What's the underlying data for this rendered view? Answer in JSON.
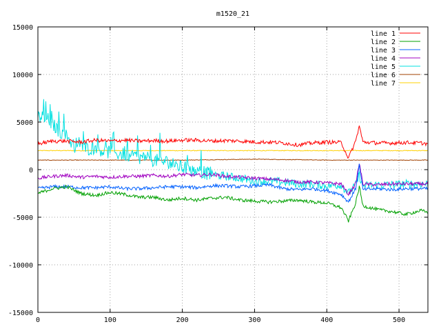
{
  "chart_data": {
    "type": "line",
    "title": "m1520_21",
    "xlabel": "",
    "ylabel": "",
    "xlim": [
      0,
      540
    ],
    "ylim": [
      -15000,
      15000
    ],
    "xticks": [
      0,
      100,
      200,
      300,
      400,
      500
    ],
    "yticks": [
      -15000,
      -10000,
      -5000,
      0,
      5000,
      10000,
      15000
    ],
    "grid": true,
    "legend_position": "top-right",
    "series": [
      {
        "name": "line 1",
        "color": "#ff0000",
        "x": [
          0,
          20,
          40,
          60,
          80,
          100,
          120,
          140,
          160,
          180,
          200,
          220,
          240,
          260,
          280,
          300,
          320,
          340,
          360,
          380,
          400,
          420,
          430,
          440,
          445,
          450,
          470,
          490,
          510,
          530,
          540
        ],
        "y": [
          2700,
          3000,
          3000,
          2900,
          3100,
          3000,
          3100,
          3000,
          3050,
          3000,
          3100,
          3100,
          3000,
          3050,
          3000,
          2900,
          2900,
          2800,
          2600,
          2800,
          2900,
          2850,
          1200,
          3000,
          4600,
          2900,
          2800,
          2800,
          2850,
          2800,
          2700
        ]
      },
      {
        "name": "line 2",
        "color": "#00a000",
        "x": [
          0,
          20,
          40,
          60,
          80,
          100,
          120,
          140,
          160,
          180,
          200,
          220,
          240,
          260,
          280,
          300,
          320,
          340,
          360,
          380,
          400,
          420,
          430,
          440,
          445,
          450,
          470,
          490,
          510,
          530,
          540
        ],
        "y": [
          -2500,
          -2000,
          -1800,
          -2500,
          -2700,
          -2400,
          -2600,
          -2900,
          -2900,
          -3200,
          -3000,
          -3200,
          -3000,
          -2900,
          -3200,
          -3300,
          -3400,
          -3300,
          -3200,
          -3400,
          -3500,
          -4000,
          -5400,
          -3500,
          -1800,
          -3800,
          -4200,
          -4400,
          -4700,
          -4300,
          -4500
        ]
      },
      {
        "name": "line 3",
        "color": "#0060ff",
        "x": [
          0,
          20,
          40,
          60,
          80,
          100,
          120,
          140,
          160,
          180,
          200,
          220,
          240,
          260,
          280,
          300,
          320,
          340,
          360,
          380,
          400,
          420,
          430,
          440,
          445,
          450,
          470,
          490,
          510,
          530,
          540
        ],
        "y": [
          -2000,
          -1800,
          -1800,
          -1900,
          -1900,
          -1800,
          -2000,
          -2000,
          -1900,
          -1800,
          -1800,
          -1900,
          -1700,
          -1700,
          -1800,
          -1700,
          -1600,
          -2000,
          -2100,
          -2000,
          -2200,
          -2600,
          -3400,
          -2000,
          500,
          -2100,
          -2000,
          -2100,
          -2000,
          -2000,
          -2000
        ]
      },
      {
        "name": "line 4",
        "color": "#a000c0",
        "x": [
          0,
          20,
          40,
          60,
          80,
          100,
          120,
          140,
          160,
          180,
          200,
          220,
          240,
          260,
          280,
          300,
          320,
          340,
          360,
          380,
          400,
          420,
          430,
          440,
          445,
          450,
          470,
          490,
          510,
          530,
          540
        ],
        "y": [
          -900,
          -700,
          -600,
          -800,
          -700,
          -800,
          -700,
          -700,
          -600,
          -700,
          -500,
          -600,
          -500,
          -700,
          -800,
          -900,
          -1000,
          -1100,
          -1300,
          -1300,
          -1400,
          -1500,
          -2600,
          -1500,
          700,
          -1500,
          -1600,
          -1500,
          -1500,
          -1500,
          -1500
        ]
      },
      {
        "name": "line 5",
        "color": "#00e0e0",
        "x": [
          0,
          10,
          20,
          30,
          40,
          50,
          60,
          70,
          80,
          90,
          100,
          110,
          120,
          130,
          140,
          150,
          160,
          170,
          180,
          190,
          200,
          210,
          220,
          230,
          240,
          260,
          280,
          300,
          320,
          340,
          360,
          380,
          400,
          420,
          430,
          440,
          445,
          450,
          470,
          490,
          510,
          530,
          540
        ],
        "y": [
          5500,
          5600,
          4800,
          4000,
          3500,
          2500,
          2500,
          2200,
          2300,
          2000,
          1800,
          1700,
          1600,
          1500,
          1300,
          1200,
          1000,
          900,
          800,
          500,
          200,
          0,
          -200,
          -300,
          -500,
          -700,
          -900,
          -1200,
          -1200,
          -1300,
          -1500,
          -1500,
          -1700,
          -1600,
          -2500,
          -1600,
          -600,
          -1700,
          -1600,
          -1600,
          -1500,
          -1500,
          -1500
        ]
      },
      {
        "name": "line 6",
        "color": "#a04000",
        "x": [
          0,
          100,
          200,
          300,
          400,
          500,
          540
        ],
        "y": [
          1000,
          1000,
          1000,
          1100,
          1000,
          1000,
          1000
        ]
      },
      {
        "name": "line 7",
        "color": "#ffd000",
        "x": [
          0,
          100,
          200,
          300,
          400,
          500,
          540
        ],
        "y": [
          2000,
          2000,
          2000,
          2000,
          2000,
          2000,
          2000
        ]
      }
    ]
  }
}
